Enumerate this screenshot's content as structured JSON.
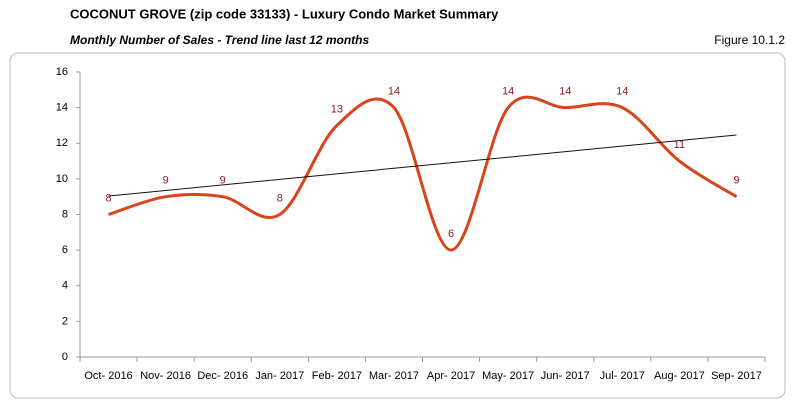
{
  "chart_data": {
    "type": "line",
    "title": "COCONUT GROVE (zip code 33133) - Luxury Condo Market Summary",
    "subtitle": "Monthly Number of Sales - Trend line last 12 months",
    "figure_label": "Figure 10.1.2",
    "categories": [
      "Oct- 2016",
      "Nov- 2016",
      "Dec- 2016",
      "Jan- 2017",
      "Feb- 2017",
      "Mar- 2017",
      "Apr- 2017",
      "May- 2017",
      "Jun- 2017",
      "Jul- 2017",
      "Aug- 2017",
      "Sep- 2017"
    ],
    "series": [
      {
        "name": "Number of Sales",
        "color": "#d9441c",
        "values": [
          8,
          9,
          9,
          8,
          13,
          14,
          6,
          14,
          14,
          14,
          11,
          9
        ]
      }
    ],
    "ylim": [
      0,
      16
    ],
    "yticks": [
      0,
      2,
      4,
      6,
      8,
      10,
      12,
      14,
      16
    ],
    "smooth": true,
    "trendline": true,
    "trendline_color": "#111111",
    "data_labels": true,
    "label_color": "#8b1a1a",
    "grid": false
  }
}
